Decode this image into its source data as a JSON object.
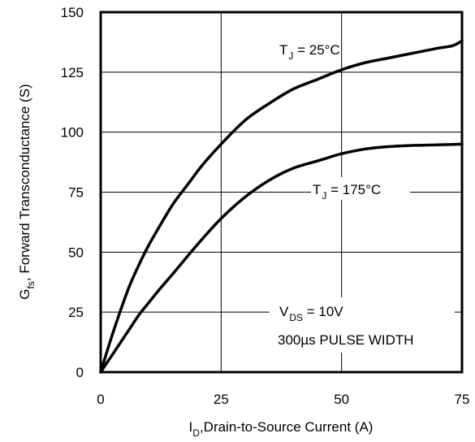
{
  "chart_data": {
    "type": "line",
    "title": "",
    "xlabel": {
      "main": "I",
      "sub": "D",
      "rest": ",Drain-to-Source Current (A)"
    },
    "ylabel": {
      "main": "G",
      "sub": "fs",
      "rest": ", Forward Transconductance (S)"
    },
    "xlim": [
      0,
      75
    ],
    "ylim": [
      0,
      150
    ],
    "xticks": [
      0,
      25,
      50,
      75
    ],
    "yticks": [
      0,
      25,
      50,
      75,
      100,
      125,
      150
    ],
    "xtick_labels": [
      "0",
      "25",
      "50",
      "75"
    ],
    "ytick_labels": [
      "0",
      "25",
      "50",
      "75",
      "100",
      "125",
      "150"
    ],
    "grid": true,
    "series": [
      {
        "name": "TJ = 25°C",
        "x": [
          0,
          2,
          4,
          6,
          8,
          10,
          12,
          15,
          18,
          21,
          25,
          30,
          35,
          40,
          45,
          50,
          55,
          60,
          65,
          70,
          73,
          75
        ],
        "y": [
          0,
          13,
          25,
          36,
          45,
          53,
          60,
          70,
          78,
          86,
          95,
          105,
          112,
          118,
          122,
          126,
          129,
          131,
          133,
          135,
          136,
          138
        ]
      },
      {
        "name": "TJ = 175°C",
        "x": [
          0,
          2,
          4,
          6,
          8,
          10,
          12,
          15,
          20,
          25,
          30,
          35,
          40,
          45,
          50,
          55,
          60,
          65,
          70,
          75
        ],
        "y": [
          0,
          6,
          12,
          18,
          24,
          29,
          34,
          41,
          53,
          64,
          73,
          80,
          85,
          88,
          91,
          93,
          94,
          94.5,
          94.7,
          95
        ]
      }
    ],
    "annotations": {
      "tj25": {
        "t": "T",
        "sub": "J",
        "rest": " = 25°C"
      },
      "tj175": {
        "t": "T",
        "sub": "J",
        "rest": " = 175°C"
      },
      "vds": {
        "t": "V",
        "sub": "DS",
        "rest": " = 10V"
      },
      "pulse": "300µs PULSE WIDTH"
    }
  }
}
